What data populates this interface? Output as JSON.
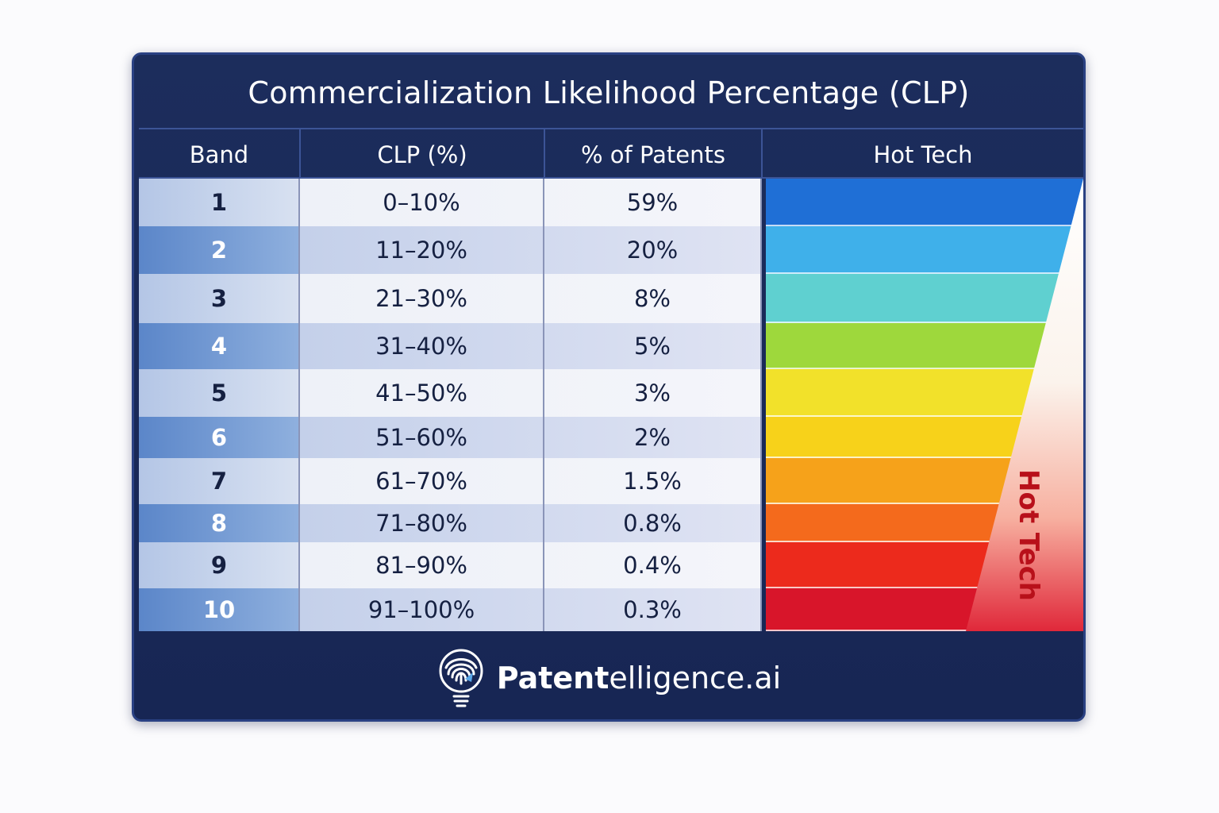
{
  "chart_data": {
    "type": "table",
    "title": "Commercialization Likelihood Percentage (CLP)",
    "columns": [
      "Band",
      "CLP (%)",
      "% of Patents",
      "Hot Tech"
    ],
    "rows": [
      {
        "band": "1",
        "clp": "0–10%",
        "patents": "59%"
      },
      {
        "band": "2",
        "clp": "11–20%",
        "patents": "20%"
      },
      {
        "band": "3",
        "clp": "21–30%",
        "patents": "8%"
      },
      {
        "band": "4",
        "clp": "31–40%",
        "patents": "5%"
      },
      {
        "band": "5",
        "clp": "41–50%",
        "patents": "3%"
      },
      {
        "band": "6",
        "clp": "51–60%",
        "patents": "2%"
      },
      {
        "band": "7",
        "clp": "61–70%",
        "patents": "1.5%"
      },
      {
        "band": "8",
        "clp": "71–80%",
        "patents": "0.8%"
      },
      {
        "band": "9",
        "clp": "81–90%",
        "patents": "0.4%"
      },
      {
        "band": "10",
        "clp": "91–100%",
        "patents": "0.3%"
      }
    ],
    "hot_tech_label": "Hot Tech",
    "hot_tech_colors": [
      "#1f6fd6",
      "#3fb0ea",
      "#5fd0d0",
      "#9ed83c",
      "#f2e12a",
      "#f7d21a",
      "#f6a21a",
      "#f46a1c",
      "#ec2a1c",
      "#d8152a"
    ]
  },
  "brand": {
    "name_bold": "Patent",
    "name_rest": "elligence.ai",
    "logo_icon": "fingerprint-lightbulb-icon"
  }
}
